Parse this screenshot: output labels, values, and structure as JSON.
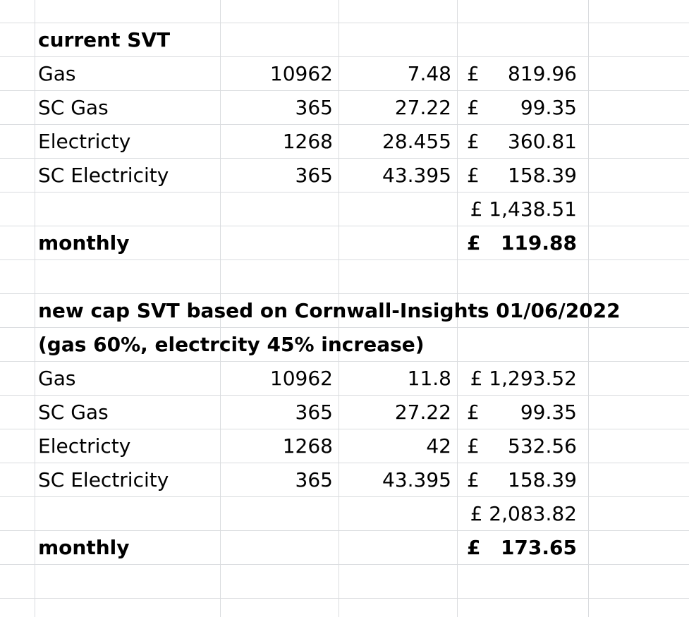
{
  "sheet": {
    "grid_color": "#dadcdf",
    "rows": [
      {
        "cells": []
      },
      {
        "cells": [
          {
            "col": "c0",
            "text": "current SVT",
            "bold": true
          }
        ]
      },
      {
        "cells": [
          {
            "col": "c0",
            "text": "Gas"
          },
          {
            "col": "c1",
            "text": "10962"
          },
          {
            "col": "c2",
            "text": "7.48"
          },
          {
            "col": "c3",
            "text": "£"
          },
          {
            "col": "c4",
            "text": "819.96"
          }
        ]
      },
      {
        "cells": [
          {
            "col": "c0",
            "text": "SC Gas"
          },
          {
            "col": "c1",
            "text": "365"
          },
          {
            "col": "c2",
            "text": "27.22"
          },
          {
            "col": "c3",
            "text": "£"
          },
          {
            "col": "c4",
            "text": "99.35"
          }
        ]
      },
      {
        "cells": [
          {
            "col": "c0",
            "text": "Electricty"
          },
          {
            "col": "c1",
            "text": "1268"
          },
          {
            "col": "c2",
            "text": "28.455"
          },
          {
            "col": "c3",
            "text": "£"
          },
          {
            "col": "c4",
            "text": "360.81"
          }
        ]
      },
      {
        "cells": [
          {
            "col": "c0",
            "text": "SC Electricity"
          },
          {
            "col": "c1",
            "text": "365"
          },
          {
            "col": "c2",
            "text": "43.395"
          },
          {
            "col": "c3",
            "text": "£"
          },
          {
            "col": "c4",
            "text": "158.39"
          }
        ]
      },
      {
        "cells": [
          {
            "col": "c34",
            "text": "£ 1,438.51"
          }
        ]
      },
      {
        "cells": [
          {
            "col": "c0",
            "text": "monthly",
            "bold": true
          },
          {
            "col": "c3",
            "text": "£",
            "bold": true
          },
          {
            "col": "c4",
            "text": "119.88",
            "bold": true
          }
        ]
      },
      {
        "cells": []
      },
      {
        "cells": [
          {
            "col": "c0",
            "text": "new cap SVT based on Cornwall-Insights 01/06/2022",
            "bold": true,
            "wide": true
          }
        ]
      },
      {
        "cells": [
          {
            "col": "c0",
            "text": "(gas 60%, electrcity 45% increase)",
            "bold": true,
            "wide": true
          }
        ]
      },
      {
        "cells": [
          {
            "col": "c0",
            "text": "Gas"
          },
          {
            "col": "c1",
            "text": "10962"
          },
          {
            "col": "c2",
            "text": "11.8"
          },
          {
            "col": "c34",
            "text": "£ 1,293.52"
          }
        ]
      },
      {
        "cells": [
          {
            "col": "c0",
            "text": "SC Gas"
          },
          {
            "col": "c1",
            "text": "365"
          },
          {
            "col": "c2",
            "text": "27.22"
          },
          {
            "col": "c3",
            "text": "£"
          },
          {
            "col": "c4",
            "text": "99.35"
          }
        ]
      },
      {
        "cells": [
          {
            "col": "c0",
            "text": "Electricty"
          },
          {
            "col": "c1",
            "text": "1268"
          },
          {
            "col": "c2",
            "text": "42"
          },
          {
            "col": "c3",
            "text": "£"
          },
          {
            "col": "c4",
            "text": "532.56"
          }
        ]
      },
      {
        "cells": [
          {
            "col": "c0",
            "text": "SC Electricity"
          },
          {
            "col": "c1",
            "text": "365"
          },
          {
            "col": "c2",
            "text": "43.395"
          },
          {
            "col": "c3",
            "text": "£"
          },
          {
            "col": "c4",
            "text": "158.39"
          }
        ]
      },
      {
        "cells": [
          {
            "col": "c34",
            "text": "£ 2,083.82"
          }
        ]
      },
      {
        "cells": [
          {
            "col": "c0",
            "text": "monthly",
            "bold": true
          },
          {
            "col": "c3",
            "text": "£",
            "bold": true
          },
          {
            "col": "c4",
            "text": "173.65",
            "bold": true
          }
        ]
      },
      {
        "cells": []
      }
    ]
  }
}
